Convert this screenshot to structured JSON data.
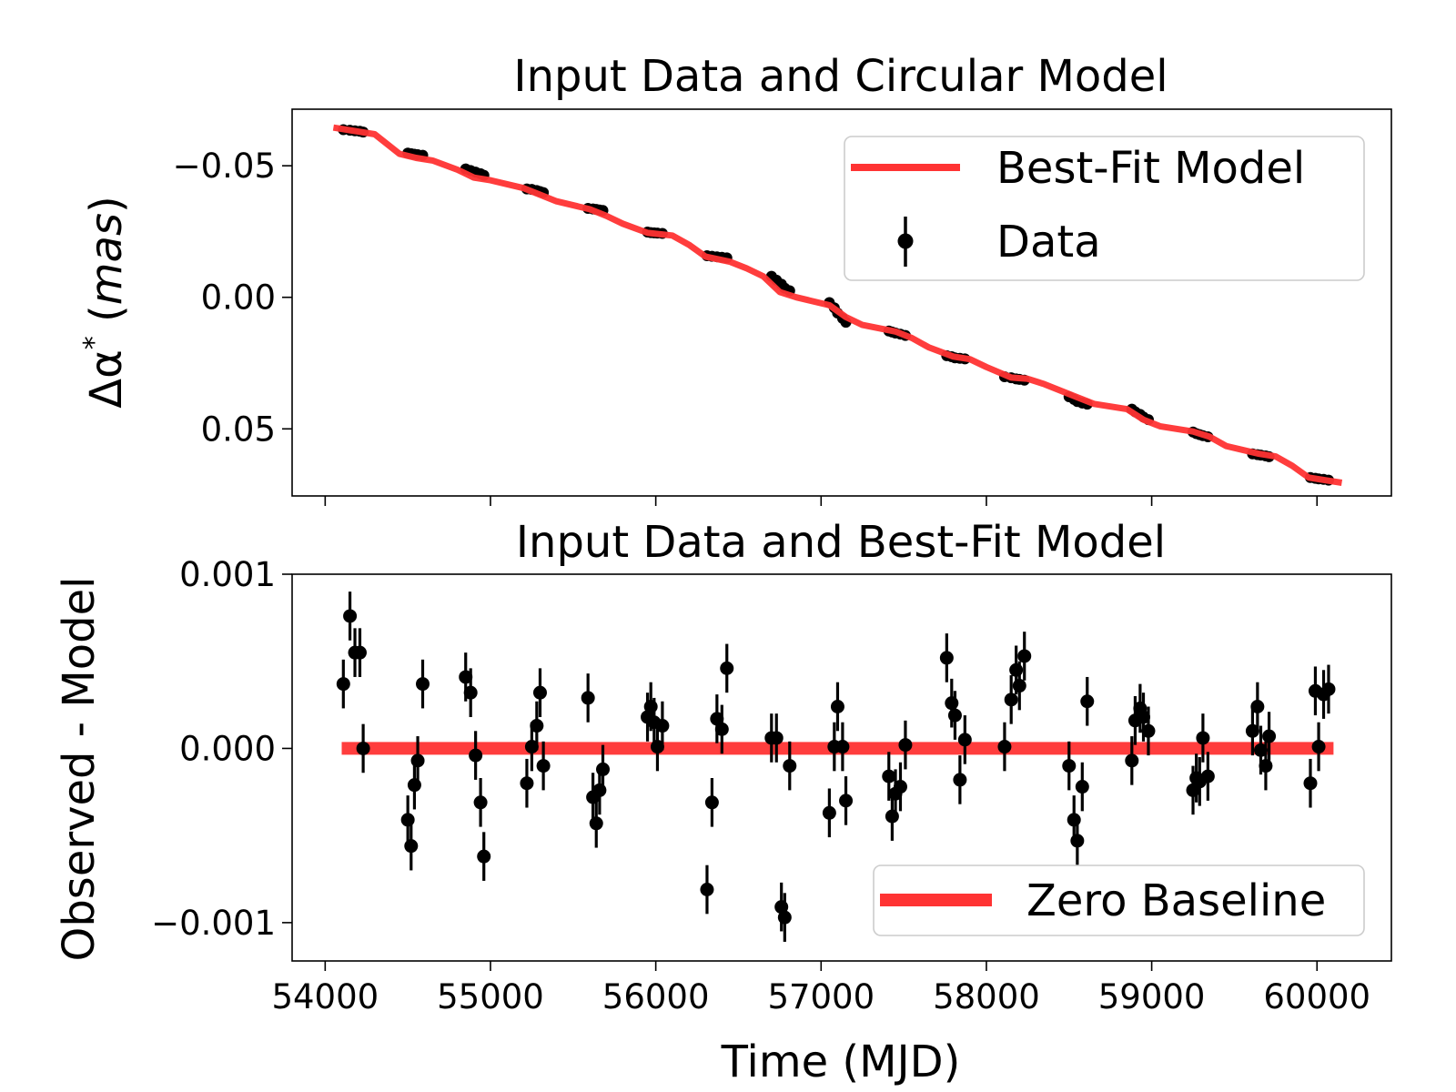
{
  "colors": {
    "model": "#ff3333",
    "data": "#000000",
    "legend_border": "#cccccc"
  },
  "chart_data": [
    {
      "type": "line",
      "title": "Input Data and Circular Model",
      "xlabel": "",
      "ylabel_prefix": "Δα",
      "ylabel_sup": "*",
      "ylabel_unit": "mas",
      "xlim": [
        53800,
        60450
      ],
      "ylim": [
        0.0755,
        -0.0715
      ],
      "yaxis_inverted": true,
      "yticks": [
        -0.05,
        0.0,
        0.05
      ],
      "ytick_labels": [
        "−0.05",
        "0.00",
        "0.05"
      ],
      "xticks": [
        54000,
        55000,
        56000,
        57000,
        58000,
        59000,
        60000
      ],
      "legend": {
        "position": "top-right",
        "entries": [
          "Best-Fit Model",
          "Data"
        ]
      },
      "series": [
        {
          "name": "Best-Fit Model",
          "kind": "line",
          "x": [
            54050,
            54200,
            54300,
            54450,
            54550,
            54650,
            54800,
            54900,
            55000,
            55200,
            55300,
            55400,
            55600,
            55700,
            55800,
            55950,
            56100,
            56200,
            56300,
            56450,
            56550,
            56650,
            56750,
            56850,
            57050,
            57150,
            57250,
            57450,
            57550,
            57650,
            57800,
            57900,
            58000,
            58150,
            58250,
            58350,
            58550,
            58650,
            58750,
            58850,
            58950,
            59050,
            59250,
            59350,
            59450,
            59650,
            59750,
            59850,
            59950,
            60050,
            60150
          ],
          "y": [
            -0.0645,
            -0.063,
            -0.062,
            -0.0545,
            -0.053,
            -0.052,
            -0.0485,
            -0.0455,
            -0.0445,
            -0.0415,
            -0.039,
            -0.0365,
            -0.0335,
            -0.031,
            -0.028,
            -0.0245,
            -0.0235,
            -0.02,
            -0.0155,
            -0.0135,
            -0.011,
            -0.008,
            -0.002,
            0.0,
            0.003,
            0.0075,
            0.0105,
            0.013,
            0.0155,
            0.019,
            0.0225,
            0.0235,
            0.0265,
            0.0305,
            0.031,
            0.033,
            0.038,
            0.0405,
            0.0415,
            0.0425,
            0.0465,
            0.049,
            0.051,
            0.053,
            0.0565,
            0.0595,
            0.0605,
            0.064,
            0.0685,
            0.0695,
            0.0705
          ]
        },
        {
          "name": "Data",
          "kind": "errorbar",
          "x": [
            54110,
            54150,
            54180,
            54210,
            54230,
            54500,
            54520,
            54540,
            54560,
            54590,
            54850,
            54880,
            54910,
            54940,
            54960,
            55220,
            55250,
            55280,
            55300,
            55320,
            55590,
            55620,
            55640,
            55660,
            55680,
            55950,
            55970,
            55990,
            56010,
            56040,
            56310,
            56340,
            56370,
            56400,
            56430,
            56700,
            56730,
            56760,
            56780,
            56810,
            57050,
            57080,
            57100,
            57130,
            57150,
            57410,
            57430,
            57450,
            57480,
            57510,
            57760,
            57790,
            57810,
            57840,
            57870,
            58110,
            58150,
            58180,
            58200,
            58230,
            58500,
            58530,
            58550,
            58580,
            58610,
            58880,
            58900,
            58930,
            58950,
            58980,
            59250,
            59270,
            59290,
            59310,
            59340,
            59610,
            59640,
            59660,
            59690,
            59710,
            59960,
            59990,
            60010,
            60040,
            60070
          ],
          "y": [
            -0.0637,
            -0.0635,
            -0.0633,
            -0.0631,
            -0.0628,
            -0.0548,
            -0.0546,
            -0.0544,
            -0.0542,
            -0.054,
            -0.0488,
            -0.0482,
            -0.0476,
            -0.047,
            -0.0464,
            -0.0412,
            -0.041,
            -0.0406,
            -0.0402,
            -0.0398,
            -0.0338,
            -0.0336,
            -0.0334,
            -0.0332,
            -0.033,
            -0.0248,
            -0.0246,
            -0.0245,
            -0.0244,
            -0.0243,
            -0.0158,
            -0.0156,
            -0.0154,
            -0.0152,
            -0.015,
            -0.008,
            -0.0065,
            -0.005,
            -0.0035,
            -0.0025,
            0.002,
            0.004,
            0.006,
            0.008,
            0.0095,
            0.0128,
            0.0132,
            0.0136,
            0.014,
            0.0145,
            0.0222,
            0.0226,
            0.023,
            0.0232,
            0.0234,
            0.0302,
            0.0306,
            0.031,
            0.0312,
            0.0315,
            0.0378,
            0.0388,
            0.0396,
            0.0402,
            0.0406,
            0.0425,
            0.0435,
            0.0445,
            0.0455,
            0.0465,
            0.0512,
            0.0518,
            0.0522,
            0.0526,
            0.053,
            0.0595,
            0.0598,
            0.06,
            0.0603,
            0.0606,
            0.0685,
            0.0688,
            0.069,
            0.0692,
            0.0695
          ],
          "yerr": 0.0006
        }
      ]
    },
    {
      "type": "scatter",
      "title": "Input Data and Best-Fit Model",
      "xlabel": "Time (MJD)",
      "ylabel": "Observed - Model",
      "xlim": [
        53800,
        60450
      ],
      "ylim": [
        -0.00122,
        0.001
      ],
      "yticks": [
        0.001,
        0.0,
        -0.001
      ],
      "ytick_labels": [
        "0.001",
        "0.000",
        "−0.001"
      ],
      "xticks": [
        54000,
        55000,
        56000,
        57000,
        58000,
        59000,
        60000
      ],
      "xtick_labels": [
        "54000",
        "55000",
        "56000",
        "57000",
        "58000",
        "59000",
        "60000"
      ],
      "legend": {
        "position": "bottom-right",
        "entries": [
          "Zero Baseline"
        ]
      },
      "series": [
        {
          "name": "Zero Baseline",
          "kind": "line",
          "x": [
            54100,
            60100
          ],
          "y": [
            0,
            0
          ]
        },
        {
          "name": "Residuals",
          "kind": "errorbar",
          "x": [
            54110,
            54150,
            54180,
            54210,
            54230,
            54500,
            54520,
            54540,
            54560,
            54590,
            54850,
            54880,
            54910,
            54940,
            54960,
            55220,
            55250,
            55280,
            55300,
            55320,
            55590,
            55620,
            55640,
            55660,
            55680,
            55950,
            55970,
            55990,
            56010,
            56040,
            56310,
            56340,
            56370,
            56400,
            56430,
            56700,
            56730,
            56760,
            56780,
            56810,
            57050,
            57080,
            57100,
            57130,
            57150,
            57410,
            57430,
            57450,
            57480,
            57510,
            57760,
            57790,
            57810,
            57840,
            57870,
            58110,
            58150,
            58180,
            58200,
            58230,
            58500,
            58530,
            58550,
            58580,
            58610,
            58880,
            58900,
            58930,
            58950,
            58980,
            59250,
            59270,
            59290,
            59310,
            59340,
            59610,
            59640,
            59660,
            59690,
            59710,
            59960,
            59990,
            60010,
            60040,
            60070
          ],
          "y": [
            0.00037,
            0.00076,
            0.00055,
            0.00055,
            0.0,
            -0.00041,
            -0.00056,
            -0.00021,
            -7e-05,
            0.00037,
            0.00041,
            0.00032,
            -4e-05,
            -0.00031,
            -0.00062,
            -0.0002,
            1e-05,
            0.00013,
            0.00032,
            -0.0001,
            0.00029,
            -0.00028,
            -0.00043,
            -0.00024,
            -0.00012,
            0.00018,
            0.00024,
            0.00015,
            1e-05,
            0.00013,
            -0.00081,
            -0.00031,
            0.00017,
            0.00011,
            0.00046,
            6e-05,
            6e-05,
            -0.00091,
            -0.00097,
            -0.0001,
            -0.00037,
            1e-05,
            0.00024,
            1e-05,
            -0.0003,
            -0.00016,
            -0.00039,
            -0.00026,
            -0.00022,
            2e-05,
            0.00052,
            0.00026,
            0.00019,
            -0.00018,
            5e-05,
            1e-05,
            0.00028,
            0.00045,
            0.00036,
            0.00053,
            -0.0001,
            -0.00041,
            -0.00053,
            -0.00022,
            0.00027,
            -7e-05,
            0.00016,
            0.00023,
            0.00018,
            0.0001,
            -0.00024,
            -0.00017,
            -0.00019,
            6e-05,
            -0.00016,
            0.0001,
            0.00024,
            -1e-05,
            -0.0001,
            7e-05,
            -0.0002,
            0.00033,
            1e-05,
            0.00031,
            0.00034
          ],
          "yerr": 0.00014
        }
      ]
    }
  ]
}
